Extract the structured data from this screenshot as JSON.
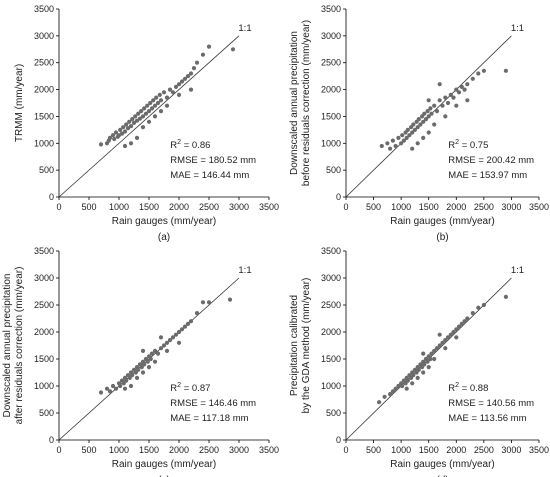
{
  "chart_data": [
    {
      "type": "scatter",
      "panel_label": "(a)",
      "xlabel": "Rain gauges (mm/year)",
      "ylabel_lines": [
        "TRMM (mm/year)"
      ],
      "xlim": [
        0,
        3500
      ],
      "ylim": [
        0,
        3500
      ],
      "xticks": [
        "0",
        "500",
        "1000",
        "1500",
        "2000",
        "2500",
        "3000",
        "3500"
      ],
      "yticks": [
        "0",
        "500",
        "1000",
        "1500",
        "2000",
        "2500",
        "3000",
        "3500"
      ],
      "reference_line_label": "1:1",
      "stats": {
        "r2_label": "R",
        "r2_sup": "2",
        "r2_value": " = 0.86",
        "rmse": "RMSE = 180.52 mm",
        "mae": "MAE = 146.44 mm"
      },
      "points": [
        [
          700,
          980
        ],
        [
          800,
          1000
        ],
        [
          830,
          1050
        ],
        [
          850,
          1100
        ],
        [
          900,
          1150
        ],
        [
          920,
          1080
        ],
        [
          950,
          1200
        ],
        [
          980,
          1120
        ],
        [
          1000,
          1150
        ],
        [
          1020,
          1250
        ],
        [
          1050,
          1180
        ],
        [
          1070,
          1300
        ],
        [
          1100,
          1220
        ],
        [
          1120,
          1350
        ],
        [
          1150,
          1280
        ],
        [
          1170,
          1400
        ],
        [
          1200,
          1320
        ],
        [
          1220,
          1450
        ],
        [
          1250,
          1380
        ],
        [
          1270,
          1500
        ],
        [
          1300,
          1420
        ],
        [
          1320,
          1550
        ],
        [
          1350,
          1460
        ],
        [
          1370,
          1600
        ],
        [
          1400,
          1500
        ],
        [
          1420,
          1650
        ],
        [
          1450,
          1550
        ],
        [
          1470,
          1700
        ],
        [
          1500,
          1600
        ],
        [
          1520,
          1750
        ],
        [
          1550,
          1650
        ],
        [
          1570,
          1800
        ],
        [
          1600,
          1700
        ],
        [
          1620,
          1850
        ],
        [
          1650,
          1750
        ],
        [
          1680,
          1900
        ],
        [
          1700,
          1800
        ],
        [
          1750,
          1950
        ],
        [
          1800,
          1850
        ],
        [
          1850,
          2000
        ],
        [
          1900,
          1950
        ],
        [
          1950,
          2050
        ],
        [
          2000,
          2100
        ],
        [
          2050,
          2150
        ],
        [
          2100,
          2200
        ],
        [
          2150,
          2250
        ],
        [
          2200,
          2300
        ],
        [
          2250,
          2400
        ],
        [
          2300,
          2500
        ],
        [
          2400,
          2650
        ],
        [
          2500,
          2800
        ],
        [
          2900,
          2750
        ],
        [
          1100,
          950
        ],
        [
          1200,
          1000
        ],
        [
          1300,
          1100
        ],
        [
          1400,
          1300
        ],
        [
          1500,
          1400
        ],
        [
          1600,
          1500
        ],
        [
          1700,
          1600
        ],
        [
          1800,
          1700
        ],
        [
          2000,
          1900
        ],
        [
          2200,
          2000
        ]
      ]
    },
    {
      "type": "scatter",
      "panel_label": "(b)",
      "xlabel": "Rain gauges (mm/year)",
      "ylabel_lines": [
        "Downscaled annual precipitation",
        "before residuals correction (mm/year)"
      ],
      "xlim": [
        0,
        3500
      ],
      "ylim": [
        0,
        3500
      ],
      "xticks": [
        "0",
        "500",
        "1000",
        "1500",
        "2000",
        "2500",
        "3000",
        "3500"
      ],
      "yticks": [
        "0",
        "500",
        "1000",
        "1500",
        "2000",
        "2500",
        "3000",
        "3500"
      ],
      "reference_line_label": "1:1",
      "stats": {
        "r2_label": "R",
        "r2_sup": "2",
        "r2_value": " = 0.75",
        "rmse": "RMSE = 200.42 mm",
        "mae": "MAE = 153.97 mm"
      },
      "points": [
        [
          650,
          950
        ],
        [
          750,
          1000
        ],
        [
          800,
          900
        ],
        [
          850,
          1050
        ],
        [
          900,
          950
        ],
        [
          950,
          1100
        ],
        [
          1000,
          1000
        ],
        [
          1020,
          1150
        ],
        [
          1050,
          1050
        ],
        [
          1080,
          1200
        ],
        [
          1100,
          1100
        ],
        [
          1120,
          1250
        ],
        [
          1150,
          1150
        ],
        [
          1180,
          1300
        ],
        [
          1200,
          1200
        ],
        [
          1220,
          1350
        ],
        [
          1250,
          1250
        ],
        [
          1280,
          1400
        ],
        [
          1300,
          1300
        ],
        [
          1320,
          1450
        ],
        [
          1350,
          1350
        ],
        [
          1380,
          1500
        ],
        [
          1400,
          1400
        ],
        [
          1420,
          1550
        ],
        [
          1450,
          1450
        ],
        [
          1480,
          1600
        ],
        [
          1500,
          1500
        ],
        [
          1530,
          1650
        ],
        [
          1550,
          1550
        ],
        [
          1600,
          1700
        ],
        [
          1650,
          1600
        ],
        [
          1700,
          1800
        ],
        [
          1750,
          1700
        ],
        [
          1800,
          1850
        ],
        [
          1850,
          1750
        ],
        [
          1900,
          1900
        ],
        [
          1950,
          1850
        ],
        [
          2000,
          2000
        ],
        [
          2050,
          1950
        ],
        [
          2100,
          2050
        ],
        [
          2150,
          2000
        ],
        [
          2200,
          2100
        ],
        [
          2300,
          2200
        ],
        [
          2400,
          2300
        ],
        [
          2500,
          2350
        ],
        [
          2900,
          2350
        ],
        [
          1200,
          900
        ],
        [
          1300,
          1000
        ],
        [
          1400,
          1100
        ],
        [
          1500,
          1200
        ],
        [
          1600,
          1350
        ],
        [
          1800,
          1500
        ],
        [
          2000,
          1700
        ],
        [
          2200,
          1800
        ],
        [
          1700,
          2100
        ],
        [
          1500,
          1800
        ]
      ]
    },
    {
      "type": "scatter",
      "panel_label": "(c)",
      "xlabel": "Rain gauges (mm/year)",
      "ylabel_lines": [
        "Downscaled annual precipitation",
        "after residuals correction (mm/year)"
      ],
      "xlim": [
        0,
        3500
      ],
      "ylim": [
        0,
        3500
      ],
      "xticks": [
        "0",
        "500",
        "1000",
        "1500",
        "2000",
        "2500",
        "3000",
        "3500"
      ],
      "yticks": [
        "0",
        "500",
        "1000",
        "1500",
        "2000",
        "2500",
        "3000",
        "3500"
      ],
      "reference_line_label": "1:1",
      "stats": {
        "r2_label": "R",
        "r2_sup": "2",
        "r2_value": " = 0.87",
        "rmse": "RMSE = 146.46 mm",
        "mae": "MAE = 117.18 mm"
      },
      "points": [
        [
          700,
          880
        ],
        [
          800,
          950
        ],
        [
          850,
          900
        ],
        [
          900,
          1000
        ],
        [
          950,
          950
        ],
        [
          1000,
          1050
        ],
        [
          1020,
          1000
        ],
        [
          1050,
          1100
        ],
        [
          1080,
          1050
        ],
        [
          1100,
          1150
        ],
        [
          1120,
          1100
        ],
        [
          1150,
          1200
        ],
        [
          1180,
          1150
        ],
        [
          1200,
          1250
        ],
        [
          1220,
          1200
        ],
        [
          1250,
          1300
        ],
        [
          1280,
          1250
        ],
        [
          1300,
          1350
        ],
        [
          1320,
          1300
        ],
        [
          1350,
          1400
        ],
        [
          1380,
          1350
        ],
        [
          1400,
          1450
        ],
        [
          1420,
          1400
        ],
        [
          1450,
          1500
        ],
        [
          1480,
          1450
        ],
        [
          1500,
          1550
        ],
        [
          1530,
          1500
        ],
        [
          1550,
          1600
        ],
        [
          1600,
          1650
        ],
        [
          1650,
          1600
        ],
        [
          1700,
          1700
        ],
        [
          1750,
          1750
        ],
        [
          1800,
          1800
        ],
        [
          1850,
          1850
        ],
        [
          1900,
          1900
        ],
        [
          1950,
          1950
        ],
        [
          2000,
          2000
        ],
        [
          2050,
          2050
        ],
        [
          2100,
          2100
        ],
        [
          2150,
          2150
        ],
        [
          2200,
          2200
        ],
        [
          2300,
          2350
        ],
        [
          2400,
          2550
        ],
        [
          2500,
          2550
        ],
        [
          2850,
          2600
        ],
        [
          1100,
          950
        ],
        [
          1200,
          1000
        ],
        [
          1300,
          1150
        ],
        [
          1400,
          1250
        ],
        [
          1500,
          1350
        ],
        [
          1600,
          1450
        ],
        [
          1800,
          1650
        ],
        [
          2000,
          1800
        ],
        [
          1400,
          1650
        ],
        [
          1700,
          1900
        ]
      ]
    },
    {
      "type": "scatter",
      "panel_label": "(d)",
      "xlabel": "Rain gauges (mm/year)",
      "ylabel_lines": [
        "Precipitation calibrated",
        "by the GDA method (mm/year)"
      ],
      "xlim": [
        0,
        3500
      ],
      "ylim": [
        0,
        3500
      ],
      "xticks": [
        "0",
        "500",
        "1000",
        "1500",
        "2000",
        "2500",
        "3000",
        "3500"
      ],
      "yticks": [
        "0",
        "500",
        "1000",
        "1500",
        "2000",
        "2500",
        "3000",
        "3500"
      ],
      "reference_line_label": "1:1",
      "stats": {
        "r2_label": "R",
        "r2_sup": "2",
        "r2_value": " = 0.88",
        "rmse": "RMSE = 140.56 mm",
        "mae": "MAE = 113.56 mm"
      },
      "points": [
        [
          600,
          700
        ],
        [
          700,
          800
        ],
        [
          800,
          850
        ],
        [
          850,
          900
        ],
        [
          900,
          950
        ],
        [
          950,
          1000
        ],
        [
          1000,
          1050
        ],
        [
          1020,
          1000
        ],
        [
          1050,
          1100
        ],
        [
          1080,
          1050
        ],
        [
          1100,
          1150
        ],
        [
          1120,
          1100
        ],
        [
          1150,
          1200
        ],
        [
          1180,
          1150
        ],
        [
          1200,
          1250
        ],
        [
          1220,
          1200
        ],
        [
          1250,
          1300
        ],
        [
          1280,
          1250
        ],
        [
          1300,
          1350
        ],
        [
          1320,
          1300
        ],
        [
          1350,
          1400
        ],
        [
          1380,
          1350
        ],
        [
          1400,
          1450
        ],
        [
          1420,
          1400
        ],
        [
          1450,
          1500
        ],
        [
          1480,
          1450
        ],
        [
          1500,
          1550
        ],
        [
          1530,
          1500
        ],
        [
          1550,
          1600
        ],
        [
          1600,
          1650
        ],
        [
          1650,
          1700
        ],
        [
          1700,
          1750
        ],
        [
          1750,
          1800
        ],
        [
          1800,
          1850
        ],
        [
          1850,
          1900
        ],
        [
          1900,
          1950
        ],
        [
          1950,
          2000
        ],
        [
          2000,
          2050
        ],
        [
          2050,
          2100
        ],
        [
          2100,
          2150
        ],
        [
          2150,
          2200
        ],
        [
          2200,
          2250
        ],
        [
          2300,
          2350
        ],
        [
          2400,
          2450
        ],
        [
          2500,
          2500
        ],
        [
          2900,
          2650
        ],
        [
          1100,
          950
        ],
        [
          1200,
          1050
        ],
        [
          1300,
          1150
        ],
        [
          1400,
          1250
        ],
        [
          1500,
          1350
        ],
        [
          1600,
          1500
        ],
        [
          1800,
          1700
        ],
        [
          2000,
          1900
        ],
        [
          1400,
          1600
        ],
        [
          1700,
          1950
        ]
      ]
    }
  ]
}
